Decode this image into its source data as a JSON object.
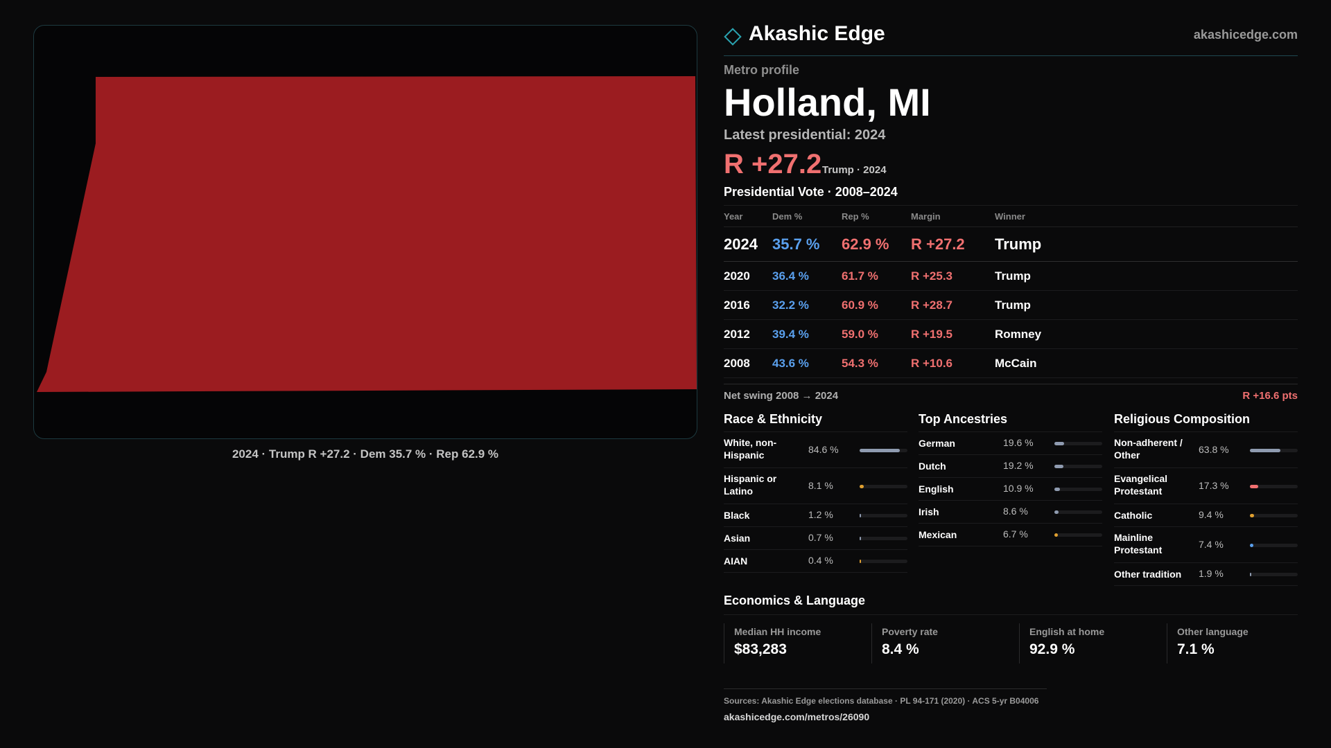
{
  "map": {
    "region_color": "#9b1c20",
    "caption": "2024 · Trump R +27.2 · Dem 35.7 % · Rep 62.9 %"
  },
  "header": {
    "brand": "Akashic Edge",
    "url": "akashicedge.com",
    "icon": "diamond-icon"
  },
  "profile": {
    "kind": "Metro profile",
    "title": "Holland, MI",
    "latest_label": "Latest presidential: 2024",
    "headline_margin": "R +27.2",
    "headline_sub": "Trump · 2024"
  },
  "votes": {
    "title": "Presidential Vote · 2008–2024",
    "columns": [
      "Year",
      "Dem %",
      "Rep %",
      "Margin",
      "Winner"
    ],
    "rows": [
      {
        "year": "2024",
        "dem": "35.7 %",
        "rep": "62.9 %",
        "margin": "R +27.2",
        "winner": "Trump"
      },
      {
        "year": "2020",
        "dem": "36.4 %",
        "rep": "61.7 %",
        "margin": "R +25.3",
        "winner": "Trump"
      },
      {
        "year": "2016",
        "dem": "32.2 %",
        "rep": "60.9 %",
        "margin": "R +28.7",
        "winner": "Trump"
      },
      {
        "year": "2012",
        "dem": "39.4 %",
        "rep": "59.0 %",
        "margin": "R +19.5",
        "winner": "Romney"
      },
      {
        "year": "2008",
        "dem": "43.6 %",
        "rep": "54.3 %",
        "margin": "R +10.6",
        "winner": "McCain"
      }
    ],
    "swing_label": "Net swing 2008 → 2024",
    "swing_value": "R +16.6 pts"
  },
  "race": {
    "title": "Race & Ethnicity",
    "items": [
      {
        "label": "White, non-Hispanic",
        "value": "84.6 %",
        "pct": 84.6,
        "color": "#8f9bb0"
      },
      {
        "label": "Hispanic or Latino",
        "value": "8.1 %",
        "pct": 8.1,
        "color": "#e0a030"
      },
      {
        "label": "Black",
        "value": "1.2 %",
        "pct": 1.2,
        "color": "#8f9bb0"
      },
      {
        "label": "Asian",
        "value": "0.7 %",
        "pct": 0.7,
        "color": "#8f9bb0"
      },
      {
        "label": "AIAN",
        "value": "0.4 %",
        "pct": 0.4,
        "color": "#e0a030"
      }
    ]
  },
  "ancestry": {
    "title": "Top Ancestries",
    "items": [
      {
        "label": "German",
        "value": "19.6 %",
        "pct": 19.6,
        "color": "#8f9bb0"
      },
      {
        "label": "Dutch",
        "value": "19.2 %",
        "pct": 19.2,
        "color": "#8f9bb0"
      },
      {
        "label": "English",
        "value": "10.9 %",
        "pct": 10.9,
        "color": "#8f9bb0"
      },
      {
        "label": "Irish",
        "value": "8.6 %",
        "pct": 8.6,
        "color": "#8f9bb0"
      },
      {
        "label": "Mexican",
        "value": "6.7 %",
        "pct": 6.7,
        "color": "#e0a030"
      }
    ]
  },
  "religion": {
    "title": "Religious Composition",
    "items": [
      {
        "label": "Non-adherent / Other",
        "value": "63.8 %",
        "pct": 63.8,
        "color": "#8f9bb0"
      },
      {
        "label": "Evangelical Protestant",
        "value": "17.3 %",
        "pct": 17.3,
        "color": "#f07070"
      },
      {
        "label": "Catholic",
        "value": "9.4 %",
        "pct": 9.4,
        "color": "#e0a030"
      },
      {
        "label": "Mainline Protestant",
        "value": "7.4 %",
        "pct": 7.4,
        "color": "#5aa0ee"
      },
      {
        "label": "Other tradition",
        "value": "1.9 %",
        "pct": 1.9,
        "color": "#8f9bb0"
      }
    ]
  },
  "economics": {
    "title": "Economics & Language",
    "stats": [
      {
        "label": "Median HH income",
        "value": "$83,283"
      },
      {
        "label": "Poverty rate",
        "value": "8.4 %"
      },
      {
        "label": "English at home",
        "value": "92.9 %"
      },
      {
        "label": "Other language",
        "value": "7.1 %"
      }
    ]
  },
  "sources": {
    "text": "Sources: Akashic Edge elections database · PL 94-171 (2020) · ACS 5-yr B04006",
    "url": "akashicedge.com/metros/26090"
  }
}
